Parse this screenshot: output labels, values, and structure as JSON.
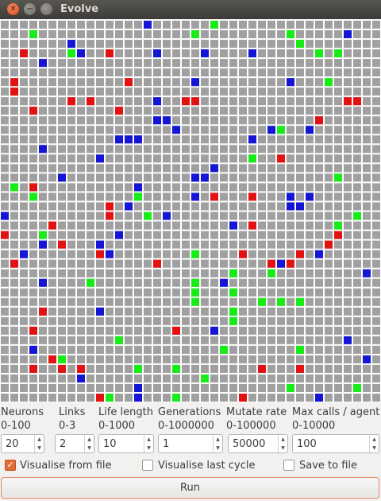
{
  "window": {
    "title": "Evolve"
  },
  "grid": {
    "cols": 40,
    "rows": 40,
    "colors": {
      "background": "#a0a0a0",
      "line": "#ffffff",
      "red": "#e21212",
      "green": "#17ec17",
      "blue": "#1515d6"
    },
    "red": [
      [
        2,
        3
      ],
      [
        3,
        1
      ],
      [
        1,
        6
      ],
      [
        1,
        7
      ],
      [
        13,
        6
      ],
      [
        7,
        8
      ],
      [
        9,
        8
      ],
      [
        19,
        8
      ],
      [
        12,
        9
      ],
      [
        3,
        9
      ],
      [
        20,
        8
      ],
      [
        36,
        8
      ],
      [
        33,
        10
      ],
      [
        37,
        8
      ],
      [
        29,
        14
      ],
      [
        3,
        17
      ],
      [
        26,
        18
      ],
      [
        22,
        18
      ],
      [
        11,
        19
      ],
      [
        11,
        20
      ],
      [
        5,
        21
      ],
      [
        26,
        21
      ],
      [
        0,
        22
      ],
      [
        35,
        22
      ],
      [
        6,
        23
      ],
      [
        34,
        23
      ],
      [
        25,
        24
      ],
      [
        31,
        24
      ],
      [
        10,
        24
      ],
      [
        1,
        25
      ],
      [
        16,
        25
      ],
      [
        28,
        25
      ],
      [
        30,
        25
      ],
      [
        20,
        27
      ],
      [
        4,
        30
      ],
      [
        18,
        32
      ],
      [
        3,
        32
      ],
      [
        5,
        35
      ],
      [
        3,
        36
      ],
      [
        6,
        36
      ],
      [
        8,
        36
      ],
      [
        27,
        36
      ],
      [
        31,
        36
      ],
      [
        25,
        39
      ],
      [
        10,
        39
      ],
      [
        0,
        40
      ],
      [
        37,
        40
      ],
      [
        11,
        3
      ]
    ],
    "green": [
      [
        3,
        1
      ],
      [
        22,
        0
      ],
      [
        20,
        1
      ],
      [
        30,
        1
      ],
      [
        7,
        3
      ],
      [
        33,
        3
      ],
      [
        35,
        3
      ],
      [
        34,
        6
      ],
      [
        29,
        11
      ],
      [
        35,
        16
      ],
      [
        26,
        14
      ],
      [
        1,
        17
      ],
      [
        3,
        18
      ],
      [
        14,
        18
      ],
      [
        15,
        20
      ],
      [
        37,
        20
      ],
      [
        35,
        21
      ],
      [
        4,
        22
      ],
      [
        20,
        24
      ],
      [
        28,
        26
      ],
      [
        9,
        27
      ],
      [
        20,
        27
      ],
      [
        20,
        28
      ],
      [
        20,
        29
      ],
      [
        24,
        28
      ],
      [
        24,
        26
      ],
      [
        27,
        29
      ],
      [
        24,
        30
      ],
      [
        24,
        31
      ],
      [
        29,
        29
      ],
      [
        31,
        29
      ],
      [
        12,
        33
      ],
      [
        23,
        34
      ],
      [
        31,
        34
      ],
      [
        6,
        35
      ],
      [
        14,
        36
      ],
      [
        18,
        36
      ],
      [
        21,
        37
      ],
      [
        30,
        38
      ],
      [
        37,
        38
      ],
      [
        18,
        39
      ],
      [
        1,
        40
      ],
      [
        35,
        41
      ],
      [
        22,
        41
      ],
      [
        11,
        39
      ],
      [
        31,
        2
      ]
    ],
    "blue": [
      [
        15,
        0
      ],
      [
        7,
        2
      ],
      [
        36,
        1
      ],
      [
        8,
        3
      ],
      [
        16,
        3
      ],
      [
        21,
        3
      ],
      [
        26,
        3
      ],
      [
        4,
        4
      ],
      [
        20,
        6
      ],
      [
        30,
        6
      ],
      [
        16,
        8
      ],
      [
        16,
        10
      ],
      [
        17,
        10
      ],
      [
        18,
        11
      ],
      [
        28,
        11
      ],
      [
        32,
        11
      ],
      [
        12,
        12
      ],
      [
        13,
        12
      ],
      [
        14,
        12
      ],
      [
        26,
        12
      ],
      [
        4,
        13
      ],
      [
        10,
        14
      ],
      [
        22,
        15
      ],
      [
        6,
        16
      ],
      [
        20,
        16
      ],
      [
        21,
        16
      ],
      [
        14,
        17
      ],
      [
        20,
        18
      ],
      [
        30,
        18
      ],
      [
        32,
        18
      ],
      [
        13,
        19
      ],
      [
        30,
        19
      ],
      [
        31,
        19
      ],
      [
        0,
        20
      ],
      [
        17,
        20
      ],
      [
        24,
        21
      ],
      [
        12,
        22
      ],
      [
        4,
        23
      ],
      [
        10,
        23
      ],
      [
        2,
        24
      ],
      [
        11,
        24
      ],
      [
        33,
        24
      ],
      [
        29,
        25
      ],
      [
        38,
        26
      ],
      [
        4,
        27
      ],
      [
        23,
        27
      ],
      [
        10,
        30
      ],
      [
        22,
        32
      ],
      [
        36,
        33
      ],
      [
        3,
        34
      ],
      [
        38,
        35
      ],
      [
        8,
        37
      ],
      [
        33,
        39
      ],
      [
        9,
        40
      ],
      [
        14,
        38
      ],
      [
        14,
        39
      ]
    ]
  },
  "params": [
    {
      "name": "Neurons",
      "range": "0-100",
      "value": "20"
    },
    {
      "name": "Links",
      "range": "0-3",
      "value": "2"
    },
    {
      "name": "Life length",
      "range": "0-1000",
      "value": "10"
    },
    {
      "name": "Generations",
      "range": "0-1000000",
      "value": "1"
    },
    {
      "name": "Mutate rate",
      "range": "0-100000",
      "value": "50000"
    },
    {
      "name": "Max calls / agent",
      "range": "0-10000",
      "value": "100"
    }
  ],
  "options": [
    {
      "label": "Visualise from file",
      "checked": true
    },
    {
      "label": "Visualise last cycle",
      "checked": false
    },
    {
      "label": "Save to file",
      "checked": false
    }
  ],
  "run_label": "Run"
}
